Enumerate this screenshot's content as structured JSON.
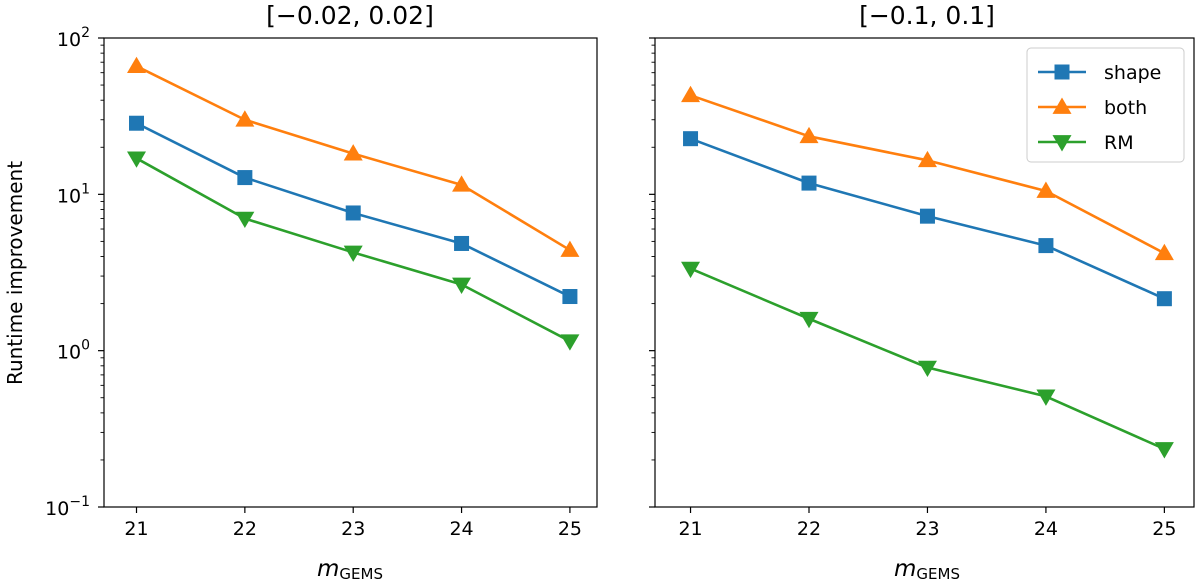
{
  "chart_data": {
    "type": "line",
    "yscale": "log",
    "shared_y": true,
    "ylabel": "Runtime improvement",
    "ylim": [
      0.1,
      100
    ],
    "yticks": [
      {
        "base": "10",
        "exp": "−1"
      },
      {
        "base": "10",
        "exp": "0"
      },
      {
        "base": "10",
        "exp": "1"
      },
      {
        "base": "10",
        "exp": "2"
      }
    ],
    "xlabel": {
      "main": "m",
      "sub": "GEMS"
    },
    "x": [
      21,
      22,
      23,
      24,
      25
    ],
    "xticks": [
      "21",
      "22",
      "23",
      "24",
      "25"
    ],
    "xlim": [
      20.7,
      25.25
    ],
    "legend": {
      "location": "top-right",
      "panel": 1
    },
    "series_styles": [
      {
        "name": "shape",
        "color": "#1f77b4",
        "marker": "square"
      },
      {
        "name": "both",
        "color": "#ff7f0e",
        "marker": "triangle-up"
      },
      {
        "name": "RM",
        "color": "#2ca02c",
        "marker": "triangle-down"
      }
    ],
    "panels": [
      {
        "title": "[−0.02, 0.02]",
        "series": [
          {
            "name": "shape",
            "values": [
              28.5,
              12.8,
              7.6,
              4.85,
              2.22
            ]
          },
          {
            "name": "both",
            "values": [
              66,
              30,
              18.2,
              11.5,
              4.4
            ]
          },
          {
            "name": "RM",
            "values": [
              17,
              7.0,
              4.25,
              2.65,
              1.15
            ]
          }
        ]
      },
      {
        "title": "[−0.1, 0.1]",
        "series": [
          {
            "name": "shape",
            "values": [
              22.7,
              11.8,
              7.25,
              4.7,
              2.15
            ]
          },
          {
            "name": "both",
            "values": [
              43,
              23.5,
              16.5,
              10.5,
              4.2
            ]
          },
          {
            "name": "RM",
            "values": [
              3.35,
              1.6,
              0.78,
              0.51,
              0.235
            ]
          }
        ]
      }
    ]
  }
}
